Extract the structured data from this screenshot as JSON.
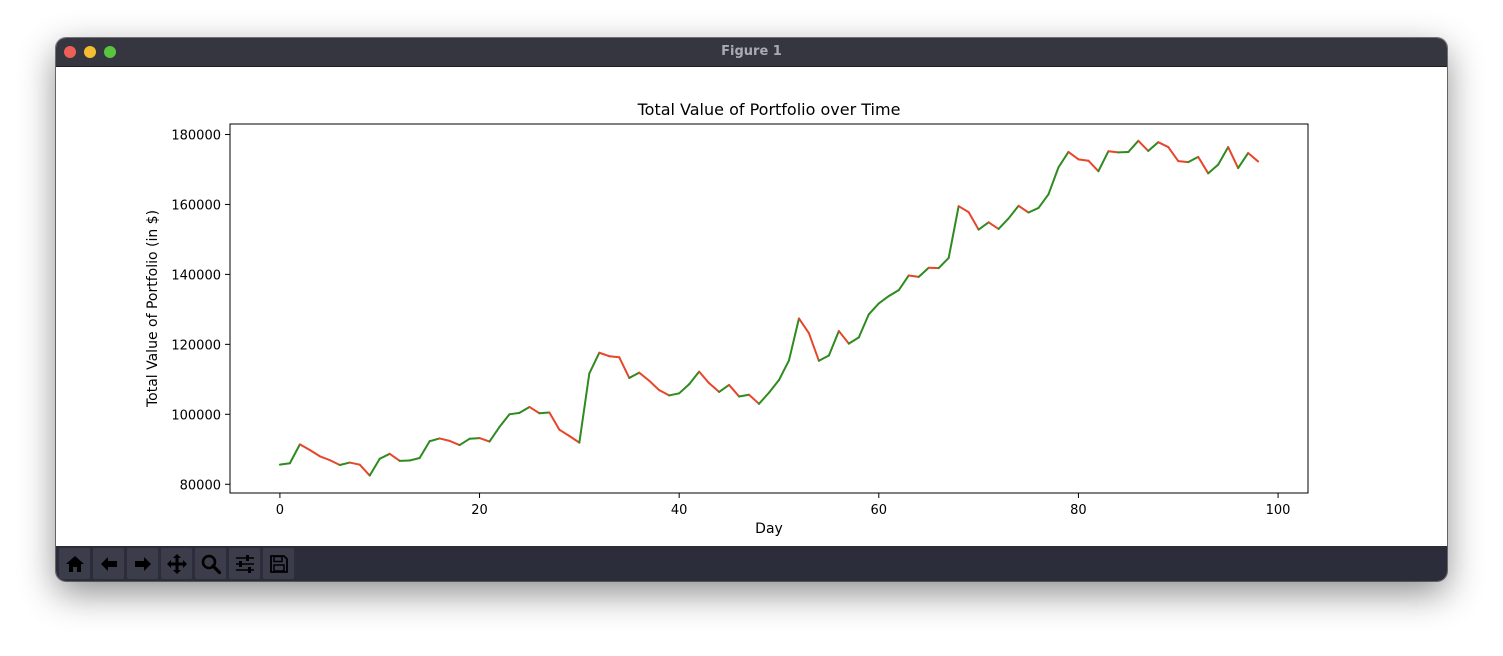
{
  "window": {
    "title": "Figure 1"
  },
  "toolbar": {
    "buttons": [
      {
        "name": "home-button",
        "icon": "home-icon"
      },
      {
        "name": "back-button",
        "icon": "arrow-left-icon"
      },
      {
        "name": "forward-button",
        "icon": "arrow-right-icon"
      },
      {
        "name": "pan-button",
        "icon": "move-icon"
      },
      {
        "name": "zoom-button",
        "icon": "magnifier-icon"
      },
      {
        "name": "configure-subplots-button",
        "icon": "sliders-icon"
      },
      {
        "name": "save-button",
        "icon": "floppy-disk-icon"
      }
    ]
  },
  "colors": {
    "up": "#2e8b1f",
    "down": "#e8452a",
    "titlebar": "#35363f",
    "toolbar": "#2b2d3b"
  },
  "chart_data": {
    "type": "line",
    "title": "Total Value of Portfolio over Time",
    "xlabel": "Day",
    "ylabel": "Total Value of Portfolio (in $)",
    "xlim": [
      -5,
      103
    ],
    "ylim": [
      77500,
      183000
    ],
    "xticks": [
      0,
      20,
      40,
      60,
      80,
      100
    ],
    "yticks": [
      80000,
      100000,
      120000,
      140000,
      160000,
      180000
    ],
    "grid": false,
    "legend": "none",
    "coloring": "segments colored green when value rises, red when value falls",
    "x_start": 0,
    "values": [
      85600,
      86000,
      91400,
      89800,
      88000,
      86900,
      85500,
      86200,
      85600,
      82500,
      87300,
      88700,
      86700,
      86800,
      87500,
      92300,
      93100,
      92400,
      91200,
      93000,
      93200,
      92200,
      96400,
      100000,
      100400,
      102100,
      100300,
      100500,
      95600,
      93800,
      91900,
      111700,
      117600,
      116600,
      116300,
      110400,
      111900,
      109600,
      106900,
      105400,
      106000,
      108600,
      112200,
      108900,
      106400,
      108400,
      105100,
      105600,
      103000,
      106200,
      109800,
      115400,
      127400,
      123200,
      115300,
      116800,
      123800,
      120200,
      122000,
      128600,
      131700,
      133800,
      135500,
      139700,
      139300,
      141900,
      141800,
      144700,
      159500,
      157800,
      152800,
      154900,
      153000,
      156000,
      159600,
      157700,
      159000,
      162900,
      170600,
      175000,
      172900,
      172500,
      169500,
      175200,
      174900,
      175000,
      178200,
      175300,
      177800,
      176400,
      172400,
      172100,
      173600,
      168900,
      171400,
      176400,
      170400,
      174700,
      172300
    ]
  }
}
